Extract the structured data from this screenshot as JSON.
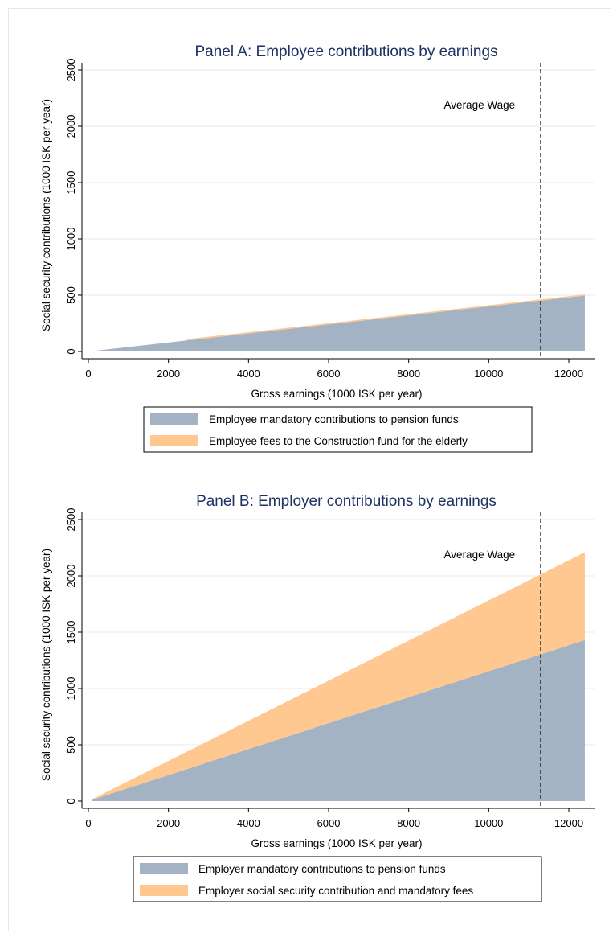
{
  "chart_data": [
    {
      "type": "area",
      "title": "Panel A: Employee contributions by earnings",
      "xlabel": "Gross earnings (1000 ISK per year)",
      "ylabel": "Social security contributions (1000 ISK per year)",
      "xlim": [
        0,
        12500
      ],
      "ylim": [
        0,
        2550
      ],
      "xticks": [
        "0",
        "2000",
        "4000",
        "6000",
        "8000",
        "10000",
        "12000"
      ],
      "yticks": [
        "0",
        "500",
        "1000",
        "1500",
        "2000",
        "2500"
      ],
      "grid": true,
      "legend_position": "bottom",
      "stacked": true,
      "annotation": {
        "text": "Average Wage",
        "x": 11300
      },
      "series": [
        {
          "name": "Employee mandatory contributions to pension funds",
          "color": "#a3b3c3",
          "x": [
            100,
            12400
          ],
          "values": [
            4,
            496
          ]
        },
        {
          "name": "Employee fees to the Construction fund for the elderly",
          "color": "#ffc890",
          "x": [
            2400,
            2500,
            12400
          ],
          "values": [
            0,
            11,
            11
          ]
        }
      ]
    },
    {
      "type": "area",
      "title": "Panel B: Employer contributions by earnings",
      "xlabel": "Gross earnings (1000 ISK per year)",
      "ylabel": "Social security contributions (1000 ISK per year)",
      "xlim": [
        0,
        12500
      ],
      "ylim": [
        0,
        2550
      ],
      "xticks": [
        "0",
        "2000",
        "4000",
        "6000",
        "8000",
        "10000",
        "12000"
      ],
      "yticks": [
        "0",
        "500",
        "1000",
        "1500",
        "2000",
        "2500"
      ],
      "grid": true,
      "legend_position": "bottom",
      "stacked": true,
      "annotation": {
        "text": "Average Wage",
        "x": 11300
      },
      "series": [
        {
          "name": "Employer mandatory contributions to pension funds",
          "color": "#a3b3c3",
          "x": [
            100,
            12400
          ],
          "values": [
            12,
            1430
          ]
        },
        {
          "name": "Employer social security contribution and mandatory fees",
          "color": "#ffc890",
          "x": [
            100,
            12400
          ],
          "values": [
            6,
            780
          ]
        }
      ]
    }
  ]
}
